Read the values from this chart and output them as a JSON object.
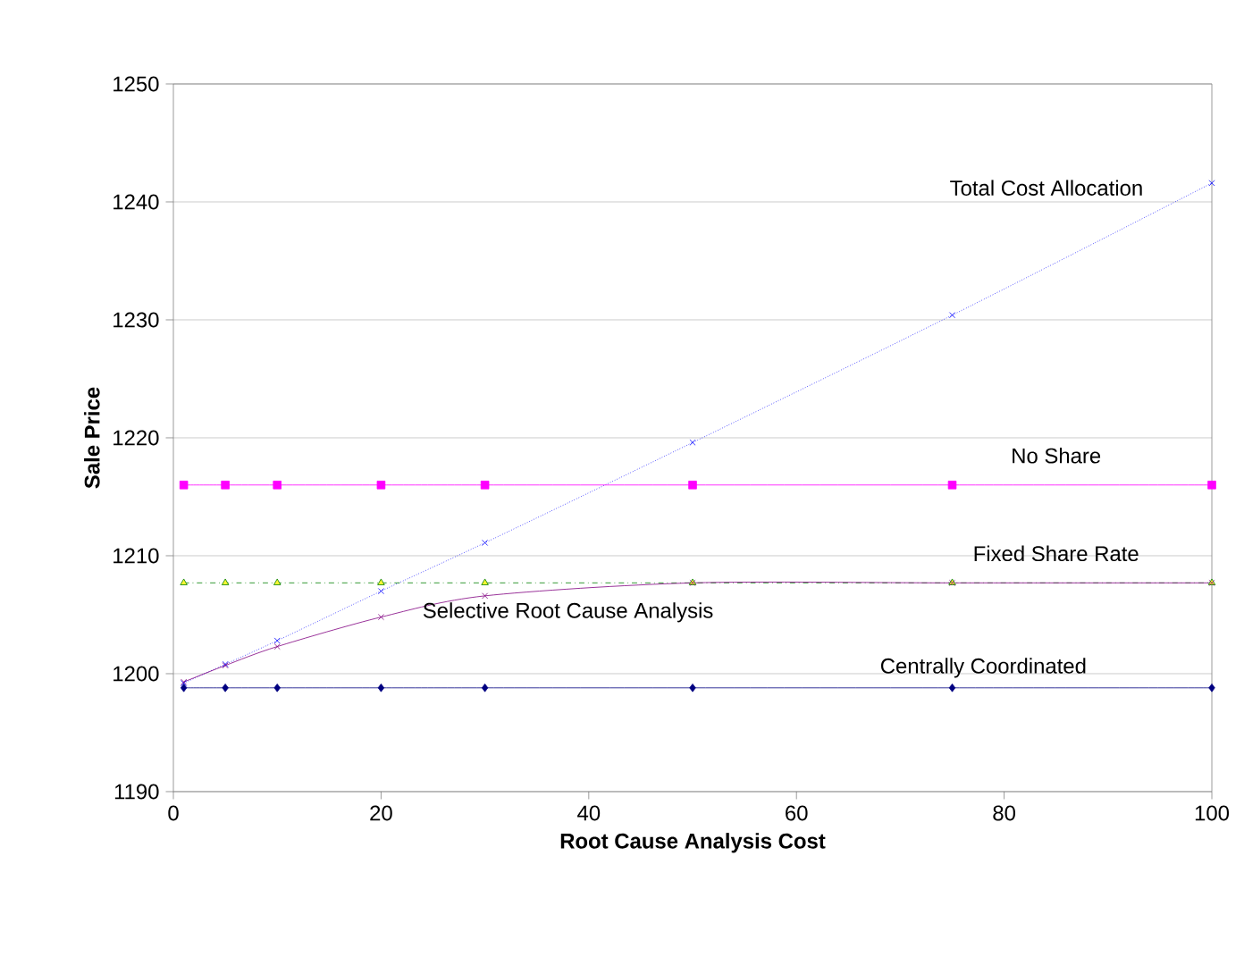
{
  "chart_data": {
    "type": "line",
    "xlabel": "Root Cause Analysis Cost",
    "ylabel": "Sale Price",
    "xlim": [
      0,
      100
    ],
    "xticks": [
      0,
      20,
      40,
      60,
      80,
      100
    ],
    "ylim": [
      1190,
      1250
    ],
    "yticks": [
      1190,
      1200,
      1210,
      1220,
      1230,
      1240,
      1250
    ],
    "grid": "y",
    "legend": false,
    "x": [
      1,
      5,
      10,
      20,
      30,
      50,
      75,
      100
    ],
    "series": [
      {
        "name": "Total Cost Allocation",
        "color": "#0000ff",
        "marker": "cross",
        "line_style": "dotted",
        "values": [
          1199.2,
          1200.8,
          1202.8,
          1207.0,
          1211.1,
          1219.6,
          1230.4,
          1241.6
        ]
      },
      {
        "name": "No Share",
        "color": "#ff00ff",
        "marker": "square",
        "line_style": "solid",
        "values": [
          1216.0,
          1216.0,
          1216.0,
          1216.0,
          1216.0,
          1216.0,
          1216.0,
          1216.0
        ]
      },
      {
        "name": "Fixed Share Rate",
        "color": "#008000",
        "marker": "triangle",
        "line_style": "dashdot",
        "values": [
          1207.7,
          1207.7,
          1207.7,
          1207.7,
          1207.7,
          1207.7,
          1207.7,
          1207.7
        ]
      },
      {
        "name": "Selective Root Cause Analysis",
        "color": "#800080",
        "marker": "cross",
        "line_style": "solid",
        "values": [
          1199.3,
          1200.7,
          1202.3,
          1204.8,
          1206.6,
          1207.7,
          1207.7,
          1207.7
        ]
      },
      {
        "name": "Centrally Coordinated",
        "color": "#000080",
        "marker": "diamond",
        "line_style": "solid",
        "values": [
          1198.8,
          1198.8,
          1198.8,
          1198.8,
          1198.8,
          1198.8,
          1198.8,
          1198.8
        ]
      }
    ]
  }
}
